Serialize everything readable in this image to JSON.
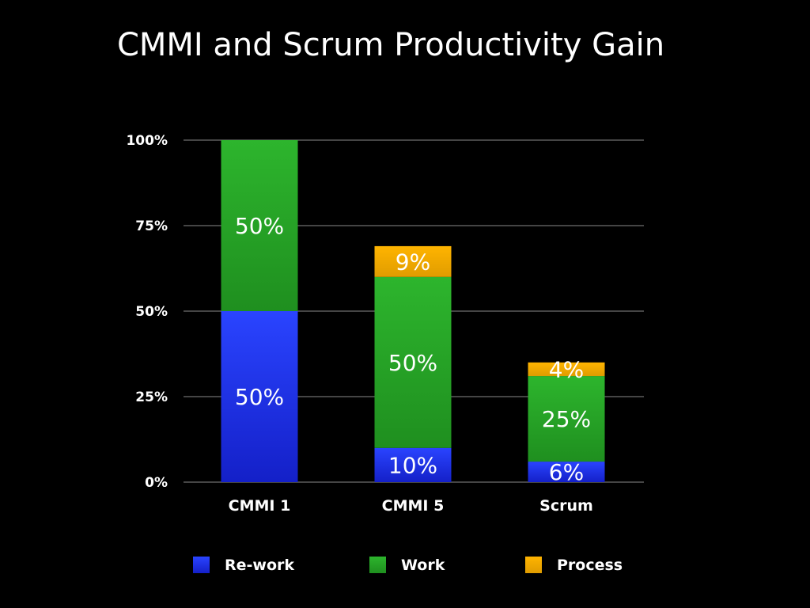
{
  "chart_data": {
    "type": "bar",
    "stacked": true,
    "title": "CMMI and Scrum Productivity Gain",
    "categories": [
      "CMMI 1",
      "CMMI 5",
      "Scrum"
    ],
    "series": [
      {
        "name": "Re-work",
        "color": "#1c2fe8",
        "values": [
          50,
          10,
          6
        ],
        "labels": [
          "50%",
          "10%",
          "6%"
        ]
      },
      {
        "name": "Work",
        "color": "#27a827",
        "values": [
          50,
          50,
          25
        ],
        "labels": [
          "50%",
          "50%",
          "25%"
        ]
      },
      {
        "name": "Process",
        "color": "#f2a900",
        "values": [
          0,
          9,
          4
        ],
        "labels": [
          "",
          "9%",
          "4%"
        ]
      }
    ],
    "yticks": [
      0,
      25,
      50,
      75,
      100
    ],
    "ytick_labels": [
      "0%",
      "25%",
      "50%",
      "75%",
      "100%"
    ],
    "ylim": [
      0,
      100
    ],
    "grid": true,
    "legend_position": "bottom"
  }
}
